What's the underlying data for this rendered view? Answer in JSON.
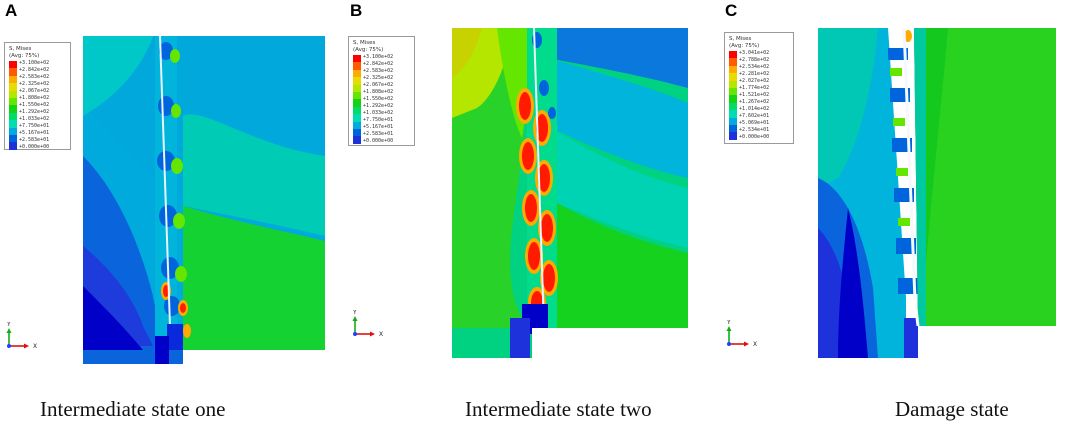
{
  "panels": [
    {
      "letter": "A",
      "caption": "Intermediate state one",
      "legend": {
        "title_1": "S, Mises",
        "title_2": "(Avg: 75%)",
        "values": [
          "+3.100e+02",
          "+2.842e+02",
          "+2.583e+02",
          "+2.325e+02",
          "+2.067e+02",
          "+1.808e+02",
          "+1.550e+02",
          "+1.292e+02",
          "+1.033e+02",
          "+7.750e+01",
          "+5.167e+01",
          "+2.583e+01",
          "+0.000e+00"
        ]
      },
      "axes": {
        "y": "Y",
        "x": "X"
      }
    },
    {
      "letter": "B",
      "caption": "Intermediate state two",
      "legend": {
        "title_1": "S, Mises",
        "title_2": "(Avg: 75%)",
        "values": [
          "+3.100e+02",
          "+2.842e+02",
          "+2.583e+02",
          "+2.325e+02",
          "+2.067e+02",
          "+1.808e+02",
          "+1.550e+02",
          "+1.292e+02",
          "+1.033e+02",
          "+7.750e+01",
          "+5.167e+01",
          "+2.583e+01",
          "+0.000e+00"
        ]
      },
      "axes": {
        "y": "Y",
        "x": "X"
      }
    },
    {
      "letter": "C",
      "caption": "Damage state",
      "legend": {
        "title_1": "S, Mises",
        "title_2": "(Avg: 75%)",
        "values": [
          "+3.041e+02",
          "+2.788e+02",
          "+2.534e+02",
          "+2.281e+02",
          "+2.027e+02",
          "+1.774e+02",
          "+1.521e+02",
          "+1.267e+02",
          "+1.014e+02",
          "+7.602e+01",
          "+5.069e+01",
          "+2.534e+01",
          "+0.000e+00"
        ]
      },
      "axes": {
        "y": "Y",
        "x": "X"
      }
    }
  ],
  "colors": {
    "scale": [
      "#ff0000",
      "#ff5a00",
      "#ffaa00",
      "#e6dc00",
      "#b4e600",
      "#64e600",
      "#14d214",
      "#00dc64",
      "#00dcb4",
      "#00aadc",
      "#0064dc",
      "#1e32dc",
      "#0000c8"
    ]
  }
}
